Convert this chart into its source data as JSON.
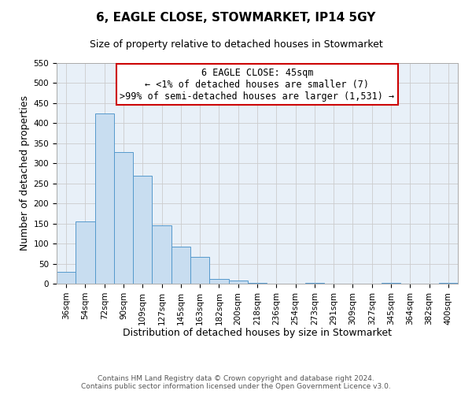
{
  "title": "6, EAGLE CLOSE, STOWMARKET, IP14 5GY",
  "subtitle": "Size of property relative to detached houses in Stowmarket",
  "xlabel": "Distribution of detached houses by size in Stowmarket",
  "ylabel": "Number of detached properties",
  "bar_labels": [
    "36sqm",
    "54sqm",
    "72sqm",
    "90sqm",
    "109sqm",
    "127sqm",
    "145sqm",
    "163sqm",
    "182sqm",
    "200sqm",
    "218sqm",
    "236sqm",
    "254sqm",
    "273sqm",
    "291sqm",
    "309sqm",
    "327sqm",
    "345sqm",
    "364sqm",
    "382sqm",
    "400sqm"
  ],
  "bar_values": [
    30,
    155,
    425,
    328,
    270,
    145,
    92,
    67,
    12,
    8,
    2,
    0,
    0,
    1,
    0,
    0,
    0,
    1,
    0,
    0,
    1
  ],
  "bar_color": "#c8ddf0",
  "bar_edge_color": "#5599cc",
  "ylim": [
    0,
    550
  ],
  "yticks": [
    0,
    50,
    100,
    150,
    200,
    250,
    300,
    350,
    400,
    450,
    500,
    550
  ],
  "annotation_box_text": "6 EAGLE CLOSE: 45sqm\n← <1% of detached houses are smaller (7)\n>99% of semi-detached houses are larger (1,531) →",
  "annotation_box_color": "#ffffff",
  "annotation_box_edge_color": "#cc0000",
  "footer_line1": "Contains HM Land Registry data © Crown copyright and database right 2024.",
  "footer_line2": "Contains public sector information licensed under the Open Government Licence v3.0.",
  "title_fontsize": 11,
  "subtitle_fontsize": 9,
  "axis_label_fontsize": 9,
  "tick_fontsize": 7.5,
  "annotation_fontsize": 8.5,
  "footer_fontsize": 6.5,
  "grid_color": "#cccccc",
  "plot_bg_color": "#e8f0f8",
  "fig_bg_color": "#ffffff"
}
